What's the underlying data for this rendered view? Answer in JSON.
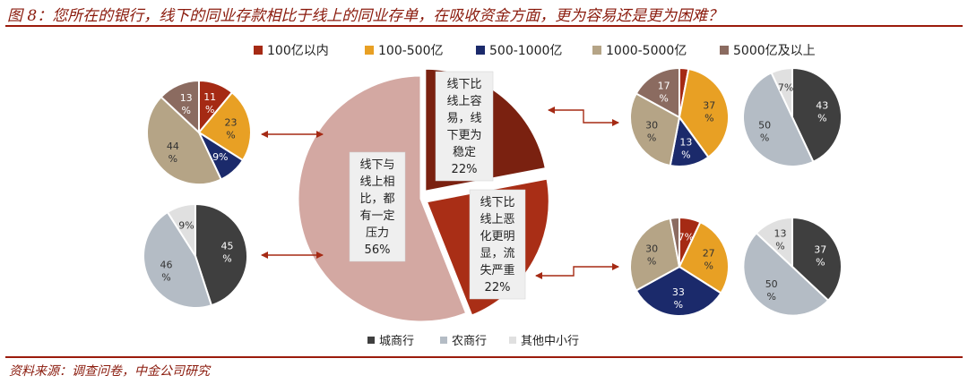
{
  "title": "图 8：您所在的银行，线下的同业存款相比于线上的同业存单，在吸收资金方面，更为容易还是更为困难？",
  "source": "资料来源：调查问卷，中金公司研究",
  "colors": {
    "accent": "#9b1b0c",
    "size_100": "#a52a14",
    "size_100_500": "#e8a024",
    "size_500_1000": "#1b2a6b",
    "size_1000_5000": "#b5a486",
    "size_5000_plus": "#8b6b60",
    "city": "#3f3f3f",
    "rural": "#b4bcc5",
    "other_small": "#e0e0e0",
    "main_easier": "#7a2110",
    "main_harder": "#a92e16",
    "main_pressure": "#d3a8a2"
  },
  "size_legend": [
    "100亿以内",
    "100-500亿",
    "500-1000亿",
    "1000-5000亿",
    "5000亿及以上"
  ],
  "type_legend": [
    "城商行",
    "农商行",
    "其他中小行"
  ],
  "chart_data": [
    {
      "type": "pie",
      "name": "main",
      "slices": [
        {
          "label": "线下比线上容易，线下更为稳定",
          "value": 22,
          "value_label": "22%",
          "color": "#7a2110"
        },
        {
          "label": "线下比线上恶化更明显，流失严重",
          "value": 22,
          "value_label": "22%",
          "color": "#a92e16"
        },
        {
          "label": "线下与线上相比，都有一定压力",
          "value": 56,
          "value_label": "56%",
          "color": "#d3a8a2"
        }
      ]
    },
    {
      "type": "pie",
      "name": "pressure_by_size",
      "slices": [
        {
          "label": "100亿以内",
          "value": 11,
          "value_label": "11%",
          "color": "#a52a14"
        },
        {
          "label": "100-500亿",
          "value": 23,
          "value_label": "23%",
          "color": "#e8a024"
        },
        {
          "label": "500-1000亿",
          "value": 9,
          "value_label": "9%",
          "color": "#1b2a6b"
        },
        {
          "label": "1000-5000亿",
          "value": 44,
          "value_label": "44%",
          "color": "#b5a486"
        },
        {
          "label": "5000亿及以上",
          "value": 13,
          "value_label": "13%",
          "color": "#8b6b60"
        }
      ]
    },
    {
      "type": "pie",
      "name": "pressure_by_type",
      "slices": [
        {
          "label": "城商行",
          "value": 45,
          "value_label": "45%",
          "color": "#3f3f3f"
        },
        {
          "label": "农商行",
          "value": 46,
          "value_label": "46%",
          "color": "#b4bcc5"
        },
        {
          "label": "其他中小行",
          "value": 9,
          "value_label": "9%",
          "color": "#e0e0e0"
        }
      ]
    },
    {
      "type": "pie",
      "name": "easier_by_size",
      "slices": [
        {
          "label": "100亿以内",
          "value": 3,
          "value_label": "",
          "color": "#a52a14"
        },
        {
          "label": "100-500亿",
          "value": 37,
          "value_label": "37%",
          "color": "#e8a024"
        },
        {
          "label": "500-1000亿",
          "value": 13,
          "value_label": "13%",
          "color": "#1b2a6b"
        },
        {
          "label": "1000-5000亿",
          "value": 30,
          "value_label": "30%",
          "color": "#b5a486"
        },
        {
          "label": "5000亿及以上",
          "value": 17,
          "value_label": "17%",
          "color": "#8b6b60"
        }
      ]
    },
    {
      "type": "pie",
      "name": "easier_by_type",
      "slices": [
        {
          "label": "城商行",
          "value": 43,
          "value_label": "43%",
          "color": "#3f3f3f"
        },
        {
          "label": "农商行",
          "value": 50,
          "value_label": "50%",
          "color": "#b4bcc5"
        },
        {
          "label": "其他中小行",
          "value": 7,
          "value_label": "7%",
          "color": "#e0e0e0"
        }
      ]
    },
    {
      "type": "pie",
      "name": "harder_by_size",
      "slices": [
        {
          "label": "100亿以内",
          "value": 7,
          "value_label": "7%",
          "color": "#a52a14"
        },
        {
          "label": "100-500亿",
          "value": 27,
          "value_label": "27%",
          "color": "#e8a024"
        },
        {
          "label": "500-1000亿",
          "value": 33,
          "value_label": "33%",
          "color": "#1b2a6b"
        },
        {
          "label": "1000-5000亿",
          "value": 30,
          "value_label": "30%",
          "color": "#b5a486"
        },
        {
          "label": "5000亿及以上",
          "value": 3,
          "value_label": "",
          "color": "#8b6b60"
        }
      ]
    },
    {
      "type": "pie",
      "name": "harder_by_type",
      "slices": [
        {
          "label": "城商行",
          "value": 37,
          "value_label": "37%",
          "color": "#3f3f3f"
        },
        {
          "label": "农商行",
          "value": 50,
          "value_label": "50%",
          "color": "#b4bcc5"
        },
        {
          "label": "其他中小行",
          "value": 13,
          "value_label": "13%",
          "color": "#e0e0e0"
        }
      ]
    }
  ]
}
